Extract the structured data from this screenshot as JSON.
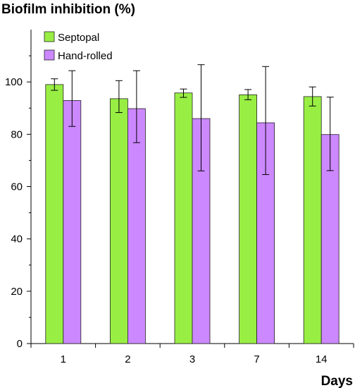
{
  "chart_data": {
    "type": "bar",
    "ylabel": "Biofilm inhibition (%)",
    "xlabel": "Days",
    "categories": [
      "1",
      "2",
      "3",
      "7",
      "14"
    ],
    "ylim": [
      0,
      120
    ],
    "yticks": [
      0,
      20,
      40,
      60,
      80,
      100
    ],
    "grid": false,
    "legend_position": "top-left",
    "series": [
      {
        "name": "Septopal",
        "color": "#99ee44",
        "values": [
          99.0,
          93.6,
          95.8,
          95.1,
          94.4
        ],
        "error_low": [
          96.8,
          88.3,
          94.1,
          93.2,
          90.8
        ],
        "error_high": [
          101.2,
          100.5,
          97.3,
          97.1,
          98.1
        ]
      },
      {
        "name": "Hand-rolled",
        "color": "#cc88ff",
        "values": [
          92.9,
          89.8,
          86.0,
          84.4,
          79.9
        ],
        "error_low": [
          83.0,
          76.8,
          66.0,
          64.6,
          66.1
        ],
        "error_high": [
          104.3,
          104.3,
          106.6,
          105.9,
          94.2
        ]
      }
    ]
  }
}
